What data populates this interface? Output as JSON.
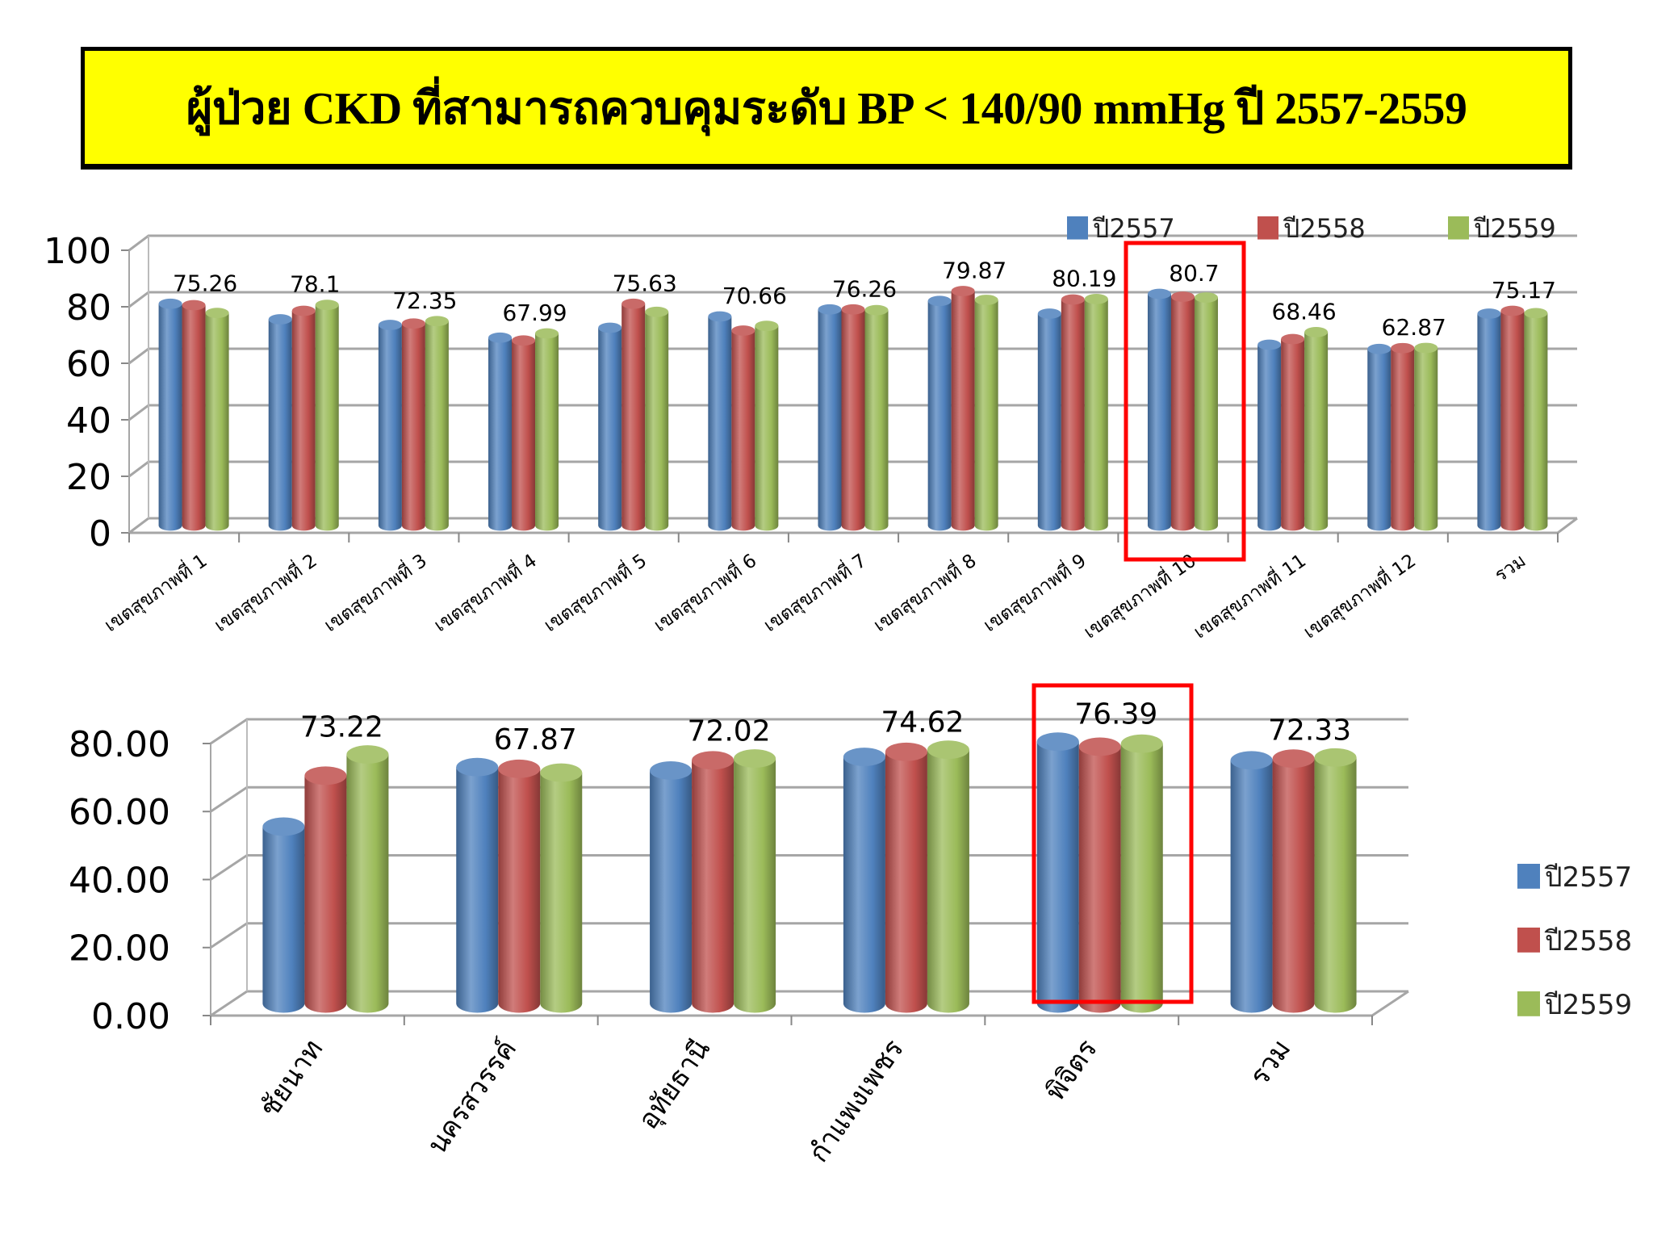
{
  "title": "ผู้ป่วย CKD ที่สามารถควบคุมระดับ BP < 140/90 mmHg ปี 2557-2559",
  "colors": {
    "title_bg": "#ffff00",
    "highlight": "#ff0000",
    "series": [
      "#4f81bd",
      "#c0504d",
      "#9bbb59"
    ]
  },
  "chart_data": [
    {
      "type": "bar",
      "style": "3d-cylinder-clustered",
      "title": "",
      "xlabel": "",
      "ylabel": "",
      "ylim": [
        0,
        100
      ],
      "yticks": [
        "0",
        "20",
        "40",
        "60",
        "80",
        "100"
      ],
      "grid": true,
      "legend_position": "top-right",
      "categories": [
        "เขตสุขภาพที่ 1",
        "เขตสุขภาพที่ 2",
        "เขตสุขภาพที่ 3",
        "เขตสุขภาพที่ 4",
        "เขตสุขภาพที่ 5",
        "เขตสุขภาพที่ 6",
        "เขตสุขภาพที่ 7",
        "เขตสุขภาพที่ 8",
        "เขตสุขภาพที่ 9",
        "เขตสุขภาพที่ 10",
        "เขตสุขภาพที่ 11",
        "เขตสุขภาพที่ 12",
        "รวม"
      ],
      "series": [
        {
          "name": "ปี2557",
          "values": [
            78.5,
            73,
            71,
            66.5,
            70,
            74,
            76.5,
            79.5,
            75,
            82,
            64,
            62.5,
            75
          ]
        },
        {
          "name": "ปี2558",
          "values": [
            78,
            76,
            71.5,
            65.5,
            78.5,
            69,
            76.5,
            83,
            80,
            81,
            66,
            62.8,
            76
          ]
        },
        {
          "name": "ปี2559",
          "values": [
            75.26,
            78.1,
            72.35,
            67.99,
            75.63,
            70.66,
            76.26,
            79.87,
            80.19,
            80.7,
            68.46,
            62.87,
            75.17
          ]
        }
      ],
      "data_labels": [
        "75.26",
        "78.1",
        "72.35",
        "67.99",
        "75.63",
        "70.66",
        "76.26",
        "79.87",
        "80.19",
        "80.7",
        "68.46",
        "62.87",
        "75.17"
      ],
      "highlighted_category": "เขตสุขภาพที่ 10"
    },
    {
      "type": "bar",
      "style": "3d-cylinder-clustered",
      "title": "",
      "xlabel": "",
      "ylabel": "",
      "ylim": [
        0,
        80
      ],
      "yticks": [
        "0.00",
        "20.00",
        "40.00",
        "60.00",
        "80.00"
      ],
      "grid": true,
      "legend_position": "right",
      "categories": [
        "ชัยนาท",
        "นครสวรรค์",
        "อุทัยธานี",
        "กำแพงเพชร",
        "พิจิตร",
        "รวม"
      ],
      "series": [
        {
          "name": "ปี2557",
          "values": [
            52,
            69.5,
            68.5,
            72.5,
            77,
            71.5
          ]
        },
        {
          "name": "ปี2558",
          "values": [
            67,
            69,
            71.5,
            74,
            75.5,
            72
          ]
        },
        {
          "name": "ปี2559",
          "values": [
            73.22,
            67.87,
            72.02,
            74.62,
            76.39,
            72.33
          ]
        }
      ],
      "data_labels": [
        "73.22",
        "67.87",
        "72.02",
        "74.62",
        "76.39",
        "72.33"
      ],
      "highlighted_category": "พิจิตร"
    }
  ]
}
